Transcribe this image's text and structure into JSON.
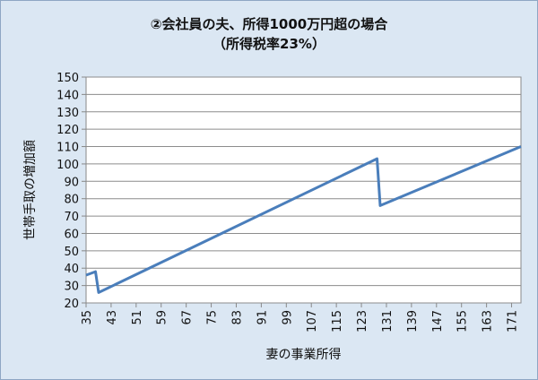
{
  "chart_data": {
    "type": "line",
    "title": "②会社員の夫、所得1000万円超の場合",
    "subtitle": "（所得税率23%）",
    "xlabel": "妻の事業所得",
    "ylabel": "世帯手取の増加額",
    "xlim": [
      35,
      174
    ],
    "ylim": [
      20,
      150
    ],
    "yticks": [
      20,
      30,
      40,
      50,
      60,
      70,
      80,
      90,
      100,
      110,
      120,
      130,
      140,
      150
    ],
    "xticks": [
      35,
      43,
      51,
      59,
      67,
      75,
      83,
      91,
      99,
      107,
      115,
      123,
      131,
      139,
      147,
      155,
      163,
      171
    ],
    "grid": true,
    "series": [
      {
        "color": "#4a7ebb",
        "x": [
          35,
          38,
          39,
          128,
          129,
          174
        ],
        "y": [
          36,
          38,
          26,
          103,
          76,
          110
        ]
      }
    ]
  }
}
